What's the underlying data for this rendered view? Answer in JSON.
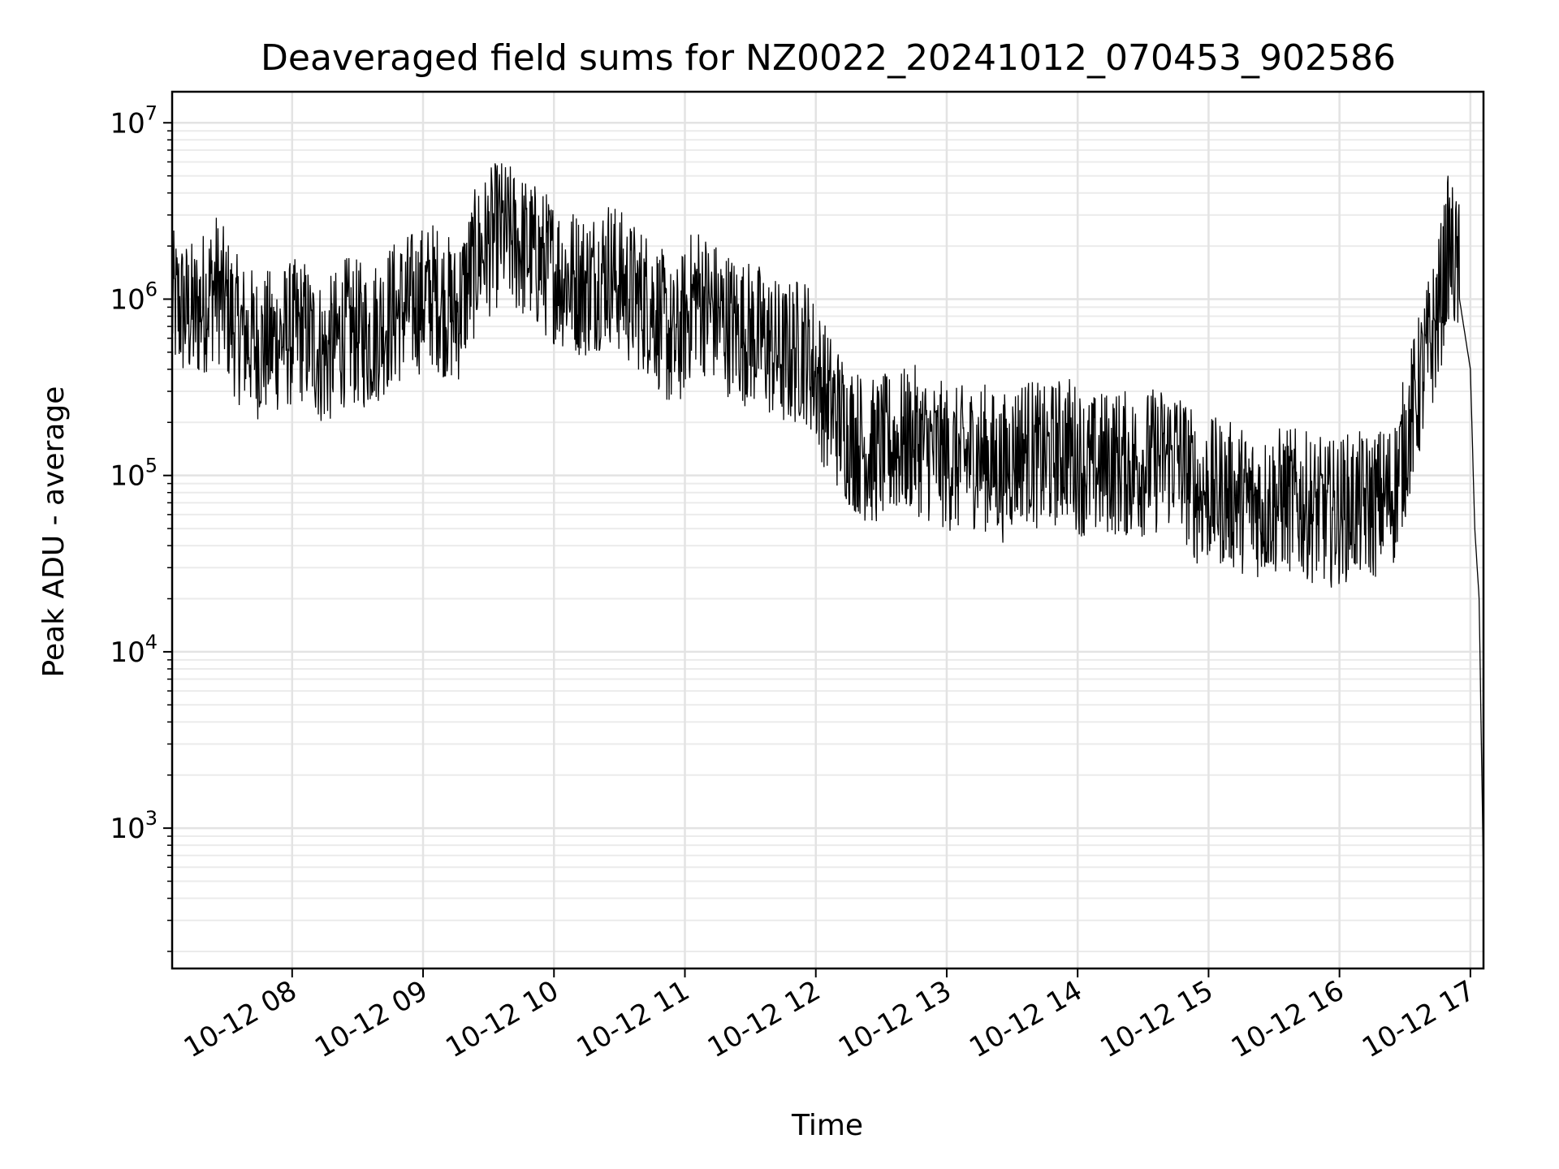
{
  "chart_data": {
    "type": "line",
    "title": "Deaveraged field sums for NZ0022_20241012_070453_902586",
    "xlabel": "Time",
    "ylabel": "Peak ADU - average",
    "yscale": "log",
    "ylim": [
      160,
      15000000
    ],
    "xlim": [
      "10-12 07:05",
      "10-12 17:06"
    ],
    "x_ticks": [
      "10-12 08",
      "10-12 09",
      "10-12 10",
      "10-12 11",
      "10-12 12",
      "10-12 13",
      "10-12 14",
      "10-12 15",
      "10-12 16",
      "10-12 17"
    ],
    "y_ticks": [
      {
        "base": "10",
        "exp": "3",
        "value": 1000
      },
      {
        "base": "10",
        "exp": "4",
        "value": 10000
      },
      {
        "base": "10",
        "exp": "5",
        "value": 100000
      },
      {
        "base": "10",
        "exp": "6",
        "value": 1000000
      },
      {
        "base": "10",
        "exp": "7",
        "value": 10000000
      }
    ],
    "grid": true,
    "series": [
      {
        "color": "#000000",
        "x": [
          "10-12 07:05",
          "10-12 07:15",
          "10-12 07:25",
          "10-12 07:35",
          "10-12 07:45",
          "10-12 07:55",
          "10-12 08:05",
          "10-12 08:15",
          "10-12 08:25",
          "10-12 08:35",
          "10-12 08:45",
          "10-12 08:55",
          "10-12 09:05",
          "10-12 09:15",
          "10-12 09:25",
          "10-12 09:35",
          "10-12 09:45",
          "10-12 09:55",
          "10-12 10:05",
          "10-12 10:15",
          "10-12 10:25",
          "10-12 10:35",
          "10-12 10:45",
          "10-12 10:55",
          "10-12 11:05",
          "10-12 11:15",
          "10-12 11:25",
          "10-12 11:35",
          "10-12 11:45",
          "10-12 11:55",
          "10-12 12:05",
          "10-12 12:15",
          "10-12 12:25",
          "10-12 12:35",
          "10-12 12:45",
          "10-12 12:55",
          "10-12 13:05",
          "10-12 13:15",
          "10-12 13:25",
          "10-12 13:35",
          "10-12 13:45",
          "10-12 13:55",
          "10-12 14:05",
          "10-12 14:15",
          "10-12 14:25",
          "10-12 14:35",
          "10-12 14:45",
          "10-12 14:55",
          "10-12 15:05",
          "10-12 15:15",
          "10-12 15:25",
          "10-12 15:35",
          "10-12 15:45",
          "10-12 15:55",
          "10-12 16:05",
          "10-12 16:15",
          "10-12 16:25",
          "10-12 16:35",
          "10-12 16:45",
          "10-12 16:50",
          "10-12 16:55",
          "10-12 17:00",
          "10-12 17:02",
          "10-12 17:04",
          "10-12 17:06"
        ],
        "y": [
          700000,
          600000,
          900000,
          500000,
          400000,
          450000,
          500000,
          350000,
          500000,
          450000,
          600000,
          700000,
          800000,
          600000,
          1300000,
          1800000,
          1500000,
          1200000,
          1000000,
          900000,
          1100000,
          800000,
          700000,
          400000,
          800000,
          600000,
          500000,
          450000,
          350000,
          400000,
          200000,
          130000,
          100000,
          110000,
          120000,
          100000,
          90000,
          100000,
          80000,
          110000,
          90000,
          110000,
          80000,
          90000,
          85000,
          90000,
          100000,
          60000,
          60000,
          55000,
          50000,
          55000,
          50000,
          45000,
          50000,
          50000,
          60000,
          200000,
          600000,
          1500000,
          1000000,
          400000,
          50000,
          20000,
          500
        ]
      }
    ]
  }
}
